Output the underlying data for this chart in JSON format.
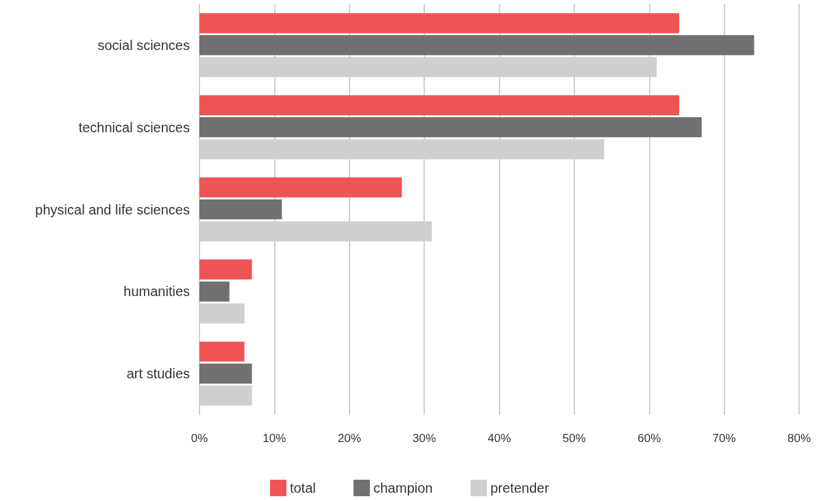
{
  "chart_data": {
    "type": "bar",
    "orientation": "horizontal",
    "categories": [
      "social sciences",
      "technical sciences",
      "physical and life sciences",
      "humanities",
      "art studies"
    ],
    "series": [
      {
        "name": "total",
        "color": "#ee5455",
        "values": [
          64,
          64,
          27,
          7,
          6
        ]
      },
      {
        "name": "champion",
        "color": "#72706e",
        "values": [
          74,
          67,
          11,
          4,
          7
        ]
      },
      {
        "name": "pretender",
        "color": "#d0cfcd",
        "values": [
          61,
          54,
          31,
          6,
          7
        ]
      }
    ],
    "xlim": [
      0,
      80
    ],
    "xticks": [
      {
        "value": 0,
        "label": "0%"
      },
      {
        "value": 10,
        "label": "10%"
      },
      {
        "value": 20,
        "label": "20%"
      },
      {
        "value": 30,
        "label": "30%"
      },
      {
        "value": 40,
        "label": "40%"
      },
      {
        "value": 50,
        "label": "50%"
      },
      {
        "value": 60,
        "label": "60%"
      },
      {
        "value": 70,
        "label": "70%"
      },
      {
        "value": 80,
        "label": "80%"
      }
    ],
    "grid": "x",
    "legend": "bottom"
  }
}
